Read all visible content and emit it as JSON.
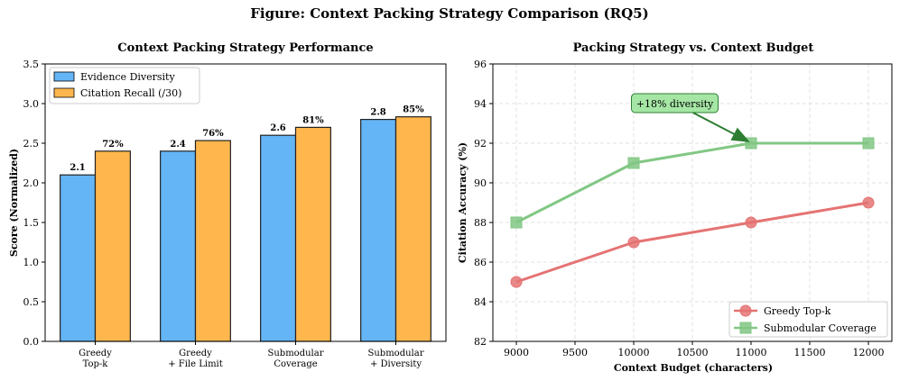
{
  "suptitle": "Figure: Context Packing Strategy Comparison (RQ5)",
  "chart_data": [
    {
      "type": "bar",
      "title": "Context Packing Strategy Performance",
      "xlabel": "",
      "ylabel": "Score (Normalized)",
      "ylim": [
        0,
        3.5
      ],
      "yticks": [
        "0.0",
        "0.5",
        "1.0",
        "1.5",
        "2.0",
        "2.5",
        "3.0",
        "3.5"
      ],
      "categories": [
        [
          "Greedy",
          "Top-k"
        ],
        [
          "Greedy",
          "+ File Limit"
        ],
        [
          "Submodular",
          "Coverage"
        ],
        [
          "Submodular",
          "+ Diversity"
        ]
      ],
      "series": [
        {
          "name": "Evidence Diversity",
          "values": [
            2.1,
            2.4,
            2.6,
            2.8
          ],
          "labels": [
            "2.1",
            "2.4",
            "2.6",
            "2.8"
          ],
          "color": "#64b5f6"
        },
        {
          "name": "Citation Recall (/30)",
          "values": [
            2.4,
            2.533,
            2.7,
            2.833
          ],
          "labels": [
            "72%",
            "76%",
            "81%",
            "85%"
          ],
          "color": "#ffb74d"
        }
      ],
      "legend": "top-left"
    },
    {
      "type": "line",
      "title": "Packing Strategy vs. Context Budget",
      "xlabel": "Context Budget (characters)",
      "ylabel": "Citation Accuracy (%)",
      "xlim": [
        8800,
        12200
      ],
      "ylim": [
        82,
        96
      ],
      "xticks": [
        "9000",
        "9500",
        "10000",
        "10500",
        "11000",
        "11500",
        "12000"
      ],
      "yticks": [
        "82",
        "84",
        "86",
        "88",
        "90",
        "92",
        "94",
        "96"
      ],
      "grid": true,
      "series": [
        {
          "name": "Greedy Top-k",
          "x": [
            9000,
            10000,
            11000,
            12000
          ],
          "y": [
            85,
            87,
            88,
            89
          ],
          "color": "#e57373",
          "marker": "circle"
        },
        {
          "name": "Submodular Coverage",
          "x": [
            9000,
            10000,
            11000,
            12000
          ],
          "y": [
            88,
            91,
            92,
            92
          ],
          "color": "#81c784",
          "marker": "square"
        }
      ],
      "annotation": {
        "text": "+18% diversity",
        "target_x": 11000,
        "target_y": 92,
        "text_x": 10350,
        "text_y": 94
      },
      "legend": "bottom-right"
    }
  ]
}
